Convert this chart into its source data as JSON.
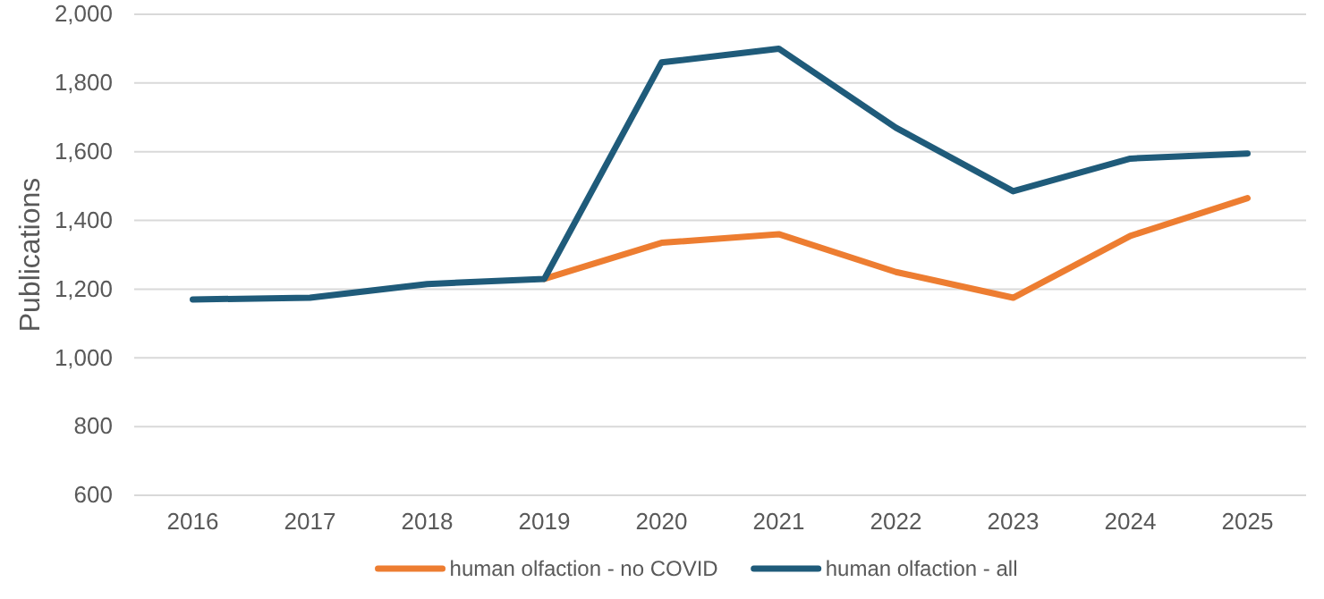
{
  "chart_data": {
    "type": "line",
    "ylabel": "Publications",
    "categories": [
      "2016",
      "2017",
      "2018",
      "2019",
      "2020",
      "2021",
      "2022",
      "2023",
      "2024",
      "2025"
    ],
    "series": [
      {
        "name": "human olfaction - no COVID",
        "color": "#ed7d31",
        "values": [
          null,
          null,
          null,
          1230,
          1335,
          1360,
          1250,
          1175,
          1355,
          1465
        ]
      },
      {
        "name": "human olfaction - all",
        "color": "#1f5b7a",
        "values": [
          1170,
          1175,
          1215,
          1230,
          1860,
          1900,
          1670,
          1485,
          1580,
          1595
        ]
      }
    ],
    "ylim": [
      600,
      2000
    ],
    "yticks": [
      600,
      800,
      {
        "value": 1000,
        "label": "1,000"
      },
      {
        "value": 1200,
        "label": "1,200"
      },
      {
        "value": 1400,
        "label": "1,400"
      },
      {
        "value": 1600,
        "label": "1,600"
      },
      {
        "value": 1800,
        "label": "1,800"
      },
      {
        "value": 2000,
        "label": "2,000"
      }
    ],
    "grid": "y",
    "legend": "bottom",
    "marker": "none",
    "line_style": "solid"
  }
}
